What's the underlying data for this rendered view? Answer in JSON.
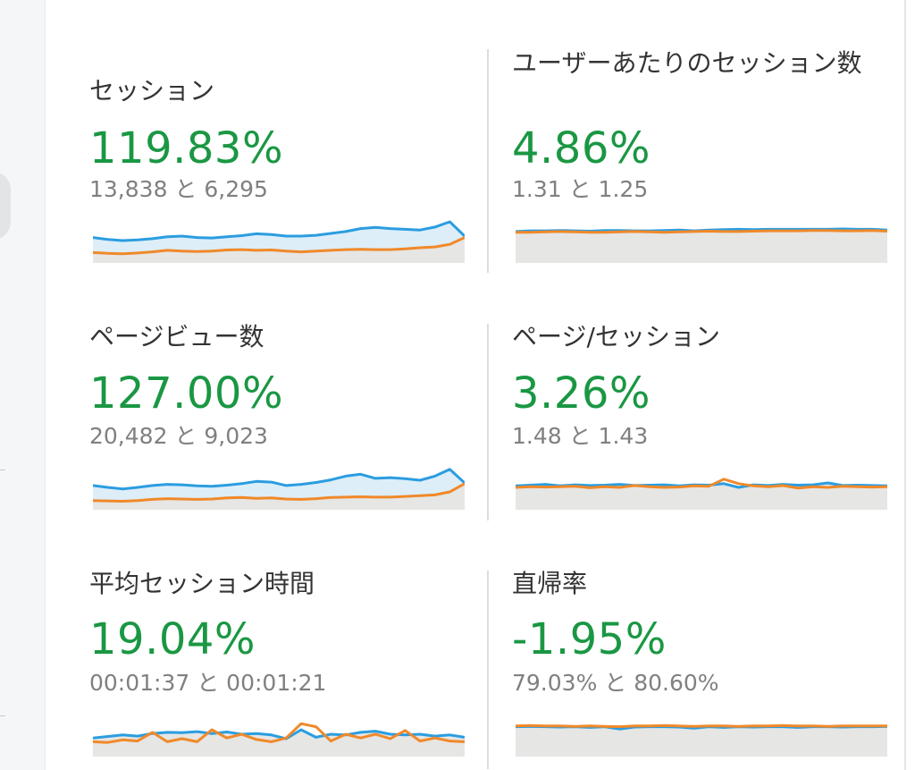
{
  "metrics": [
    {
      "title": "セッション",
      "value": "119.83%",
      "compare": "13,838 と 6,295",
      "trend": {
        "current": [
          0.58,
          0.53,
          0.5,
          0.52,
          0.55,
          0.6,
          0.62,
          0.58,
          0.57,
          0.6,
          0.63,
          0.68,
          0.66,
          0.62,
          0.62,
          0.64,
          0.69,
          0.74,
          0.82,
          0.85,
          0.82,
          0.8,
          0.78,
          0.86,
          1.0,
          0.62
        ],
        "previous": [
          0.18,
          0.16,
          0.15,
          0.17,
          0.2,
          0.24,
          0.22,
          0.21,
          0.22,
          0.25,
          0.26,
          0.24,
          0.25,
          0.22,
          0.2,
          0.22,
          0.24,
          0.26,
          0.27,
          0.26,
          0.26,
          0.28,
          0.31,
          0.33,
          0.4,
          0.58
        ],
        "fill": "blue"
      }
    },
    {
      "title": "ユーザーあたりのセッション数",
      "value": "4.86%",
      "compare": "1.31 と 1.25",
      "trend": {
        "current": [
          0.74,
          0.76,
          0.76,
          0.77,
          0.76,
          0.75,
          0.77,
          0.77,
          0.76,
          0.76,
          0.77,
          0.78,
          0.76,
          0.78,
          0.79,
          0.8,
          0.79,
          0.8,
          0.8,
          0.8,
          0.8,
          0.8,
          0.81,
          0.8,
          0.8,
          0.78
        ],
        "previous": [
          0.72,
          0.72,
          0.73,
          0.74,
          0.73,
          0.72,
          0.72,
          0.73,
          0.74,
          0.73,
          0.72,
          0.73,
          0.74,
          0.75,
          0.74,
          0.74,
          0.75,
          0.76,
          0.76,
          0.76,
          0.77,
          0.77,
          0.76,
          0.76,
          0.77,
          0.75
        ],
        "fill": "gray"
      }
    },
    {
      "title": "ページビュー数",
      "value": "127.00%",
      "compare": "20,482 と 9,023",
      "trend": {
        "current": [
          0.55,
          0.5,
          0.46,
          0.5,
          0.55,
          0.58,
          0.57,
          0.54,
          0.53,
          0.56,
          0.6,
          0.66,
          0.64,
          0.55,
          0.58,
          0.63,
          0.7,
          0.8,
          0.85,
          0.74,
          0.76,
          0.73,
          0.69,
          0.8,
          0.98,
          0.62
        ],
        "previous": [
          0.15,
          0.14,
          0.13,
          0.15,
          0.18,
          0.2,
          0.19,
          0.18,
          0.19,
          0.22,
          0.23,
          0.21,
          0.22,
          0.19,
          0.18,
          0.2,
          0.23,
          0.24,
          0.25,
          0.24,
          0.24,
          0.26,
          0.28,
          0.3,
          0.38,
          0.6
        ],
        "fill": "blue"
      }
    },
    {
      "title": "ページ/セッション",
      "value": "3.26%",
      "compare": "1.48 と 1.43",
      "trend": {
        "current": [
          0.54,
          0.56,
          0.58,
          0.54,
          0.57,
          0.55,
          0.56,
          0.58,
          0.55,
          0.56,
          0.57,
          0.54,
          0.57,
          0.56,
          0.6,
          0.5,
          0.57,
          0.55,
          0.58,
          0.56,
          0.57,
          0.62,
          0.55,
          0.56,
          0.55,
          0.54
        ],
        "previous": [
          0.5,
          0.52,
          0.51,
          0.52,
          0.53,
          0.49,
          0.52,
          0.5,
          0.55,
          0.52,
          0.5,
          0.51,
          0.54,
          0.53,
          0.72,
          0.6,
          0.54,
          0.52,
          0.55,
          0.48,
          0.52,
          0.5,
          0.53,
          0.52,
          0.51,
          0.52
        ],
        "fill": "gray"
      }
    },
    {
      "title": "平均セッション時間",
      "value": "19.04%",
      "compare": "00:01:37 と 00:01:21",
      "trend": {
        "current": [
          0.4,
          0.44,
          0.48,
          0.45,
          0.52,
          0.55,
          0.54,
          0.57,
          0.52,
          0.56,
          0.5,
          0.52,
          0.48,
          0.38,
          0.62,
          0.42,
          0.5,
          0.48,
          0.55,
          0.58,
          0.5,
          0.48,
          0.5,
          0.45,
          0.48,
          0.42
        ],
        "previous": [
          0.3,
          0.28,
          0.35,
          0.32,
          0.55,
          0.3,
          0.38,
          0.3,
          0.62,
          0.4,
          0.5,
          0.36,
          0.3,
          0.4,
          0.78,
          0.7,
          0.32,
          0.5,
          0.4,
          0.5,
          0.38,
          0.6,
          0.32,
          0.4,
          0.32,
          0.3
        ],
        "fill": "gray"
      }
    },
    {
      "title": "直帰率",
      "value": "-1.95%",
      "compare": "79.03% と 80.60%",
      "trend": {
        "current": [
          0.7,
          0.71,
          0.7,
          0.69,
          0.7,
          0.68,
          0.7,
          0.64,
          0.69,
          0.7,
          0.7,
          0.69,
          0.66,
          0.7,
          0.68,
          0.7,
          0.69,
          0.7,
          0.7,
          0.68,
          0.7,
          0.7,
          0.69,
          0.7,
          0.7,
          0.71
        ],
        "previous": [
          0.72,
          0.73,
          0.72,
          0.72,
          0.71,
          0.72,
          0.71,
          0.7,
          0.72,
          0.72,
          0.73,
          0.72,
          0.71,
          0.72,
          0.72,
          0.71,
          0.72,
          0.72,
          0.73,
          0.72,
          0.72,
          0.71,
          0.72,
          0.72,
          0.72,
          0.72
        ],
        "fill": "gray"
      }
    }
  ],
  "colors": {
    "current": "#2b9de0",
    "previous": "#f0892a",
    "positive": "#1a9743",
    "fill_blue": "#ddeef9",
    "fill_gray": "#e6e6e4"
  }
}
